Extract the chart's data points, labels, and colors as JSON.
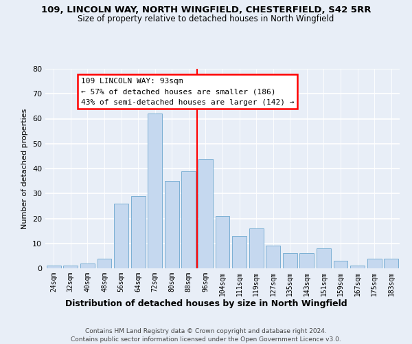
{
  "title": "109, LINCOLN WAY, NORTH WINGFIELD, CHESTERFIELD, S42 5RR",
  "subtitle": "Size of property relative to detached houses in North Wingfield",
  "xlabel": "Distribution of detached houses by size in North Wingfield",
  "ylabel": "Number of detached properties",
  "bin_labels": [
    "24sqm",
    "32sqm",
    "40sqm",
    "48sqm",
    "56sqm",
    "64sqm",
    "72sqm",
    "80sqm",
    "88sqm",
    "96sqm",
    "104sqm",
    "111sqm",
    "119sqm",
    "127sqm",
    "135sqm",
    "143sqm",
    "151sqm",
    "159sqm",
    "167sqm",
    "175sqm",
    "183sqm"
  ],
  "bar_heights": [
    1,
    1,
    2,
    4,
    26,
    29,
    62,
    35,
    39,
    44,
    21,
    13,
    16,
    9,
    6,
    6,
    8,
    3,
    1,
    4,
    4
  ],
  "bar_color": "#c5d8ef",
  "bar_edge_color": "#7bafd4",
  "bar_width": 0.85,
  "ylim": [
    0,
    80
  ],
  "yticks": [
    0,
    10,
    20,
    30,
    40,
    50,
    60,
    70,
    80
  ],
  "annotation_title": "109 LINCOLN WAY: 93sqm",
  "annotation_line1": "← 57% of detached houses are smaller (186)",
  "annotation_line2": "43% of semi-detached houses are larger (142) →",
  "footer_line1": "Contains HM Land Registry data © Crown copyright and database right 2024.",
  "footer_line2": "Contains public sector information licensed under the Open Government Licence v3.0.",
  "background_color": "#e8eef7",
  "plot_bg_color": "#e8eef7",
  "grid_color": "#ffffff",
  "red_line_index": 8.5
}
